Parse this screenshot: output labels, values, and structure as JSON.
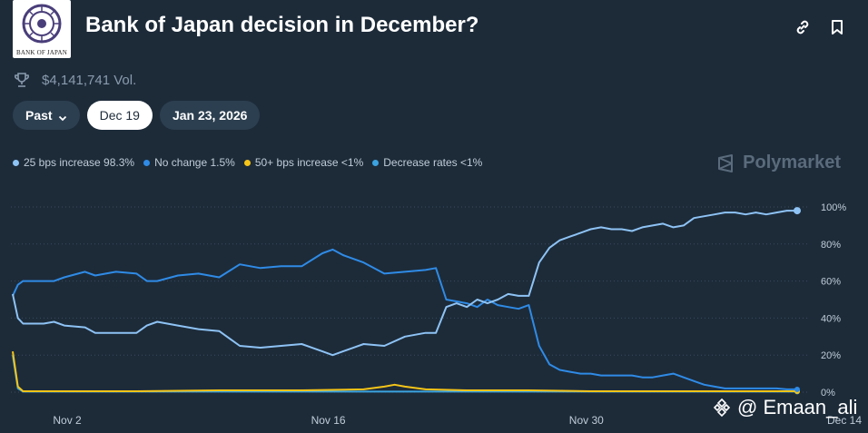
{
  "header": {
    "logo_text": "BANK OF JAPAN",
    "title": "Bank of Japan decision in December?",
    "icons": [
      "link-icon",
      "bookmark-icon"
    ]
  },
  "stats": {
    "volume": "$4,141,741 Vol.",
    "icon": "trophy-icon"
  },
  "controls": {
    "past_label": "Past",
    "date1": "Dec 19",
    "date2": "Jan 23, 2026"
  },
  "legend": [
    {
      "label": "25 bps increase 98.3%",
      "color": "#8ec3f5"
    },
    {
      "label": "No change 1.5%",
      "color": "#2f8be6"
    },
    {
      "label": "50+ bps increase <1%",
      "color": "#f5c518"
    },
    {
      "label": "Decrease rates <1%",
      "color": "#3ba3e0"
    }
  ],
  "brand": {
    "name": "Polymarket"
  },
  "watermark": {
    "text": "@ Emaan_ali"
  },
  "chart_data": {
    "type": "line",
    "x_ticks": [
      "Nov 2",
      "Nov 16",
      "Nov 30",
      "Dec 14"
    ],
    "y_ticks": [
      "0%",
      "20%",
      "40%",
      "60%",
      "80%",
      "100%"
    ],
    "ylim": [
      0,
      100
    ],
    "x_range_days": [
      0,
      47
    ],
    "grid": true,
    "series": [
      {
        "name": "25 bps increase",
        "color": "#8ec3f5",
        "points": [
          [
            0,
            53
          ],
          [
            0.5,
            40
          ],
          [
            1,
            37
          ],
          [
            3,
            37
          ],
          [
            4,
            38
          ],
          [
            5,
            36
          ],
          [
            7,
            35
          ],
          [
            8,
            32
          ],
          [
            10,
            32
          ],
          [
            12,
            32
          ],
          [
            13,
            36
          ],
          [
            14,
            38
          ],
          [
            16,
            36
          ],
          [
            18,
            34
          ],
          [
            20,
            33
          ],
          [
            22,
            25
          ],
          [
            24,
            24
          ],
          [
            26,
            25
          ],
          [
            28,
            26
          ],
          [
            30,
            22
          ],
          [
            31,
            20
          ],
          [
            32,
            22
          ],
          [
            34,
            26
          ],
          [
            36,
            25
          ],
          [
            38,
            30
          ],
          [
            40,
            32
          ],
          [
            41,
            32
          ],
          [
            42,
            46
          ],
          [
            43,
            48
          ],
          [
            44,
            46
          ],
          [
            45,
            50
          ],
          [
            46,
            48
          ],
          [
            47,
            50
          ],
          [
            48,
            53
          ],
          [
            49,
            52
          ],
          [
            50,
            52
          ],
          [
            51,
            70
          ],
          [
            52,
            78
          ],
          [
            53,
            82
          ],
          [
            54,
            84
          ],
          [
            55,
            86
          ],
          [
            56,
            88
          ],
          [
            57,
            89
          ],
          [
            58,
            88
          ],
          [
            59,
            88
          ],
          [
            60,
            87
          ],
          [
            61,
            89
          ],
          [
            62,
            90
          ],
          [
            63,
            91
          ],
          [
            64,
            89
          ],
          [
            65,
            90
          ],
          [
            66,
            94
          ],
          [
            67,
            95
          ],
          [
            68,
            96
          ],
          [
            69,
            97
          ],
          [
            70,
            97
          ],
          [
            71,
            96
          ],
          [
            72,
            97
          ],
          [
            73,
            96
          ],
          [
            74,
            97
          ],
          [
            75,
            98
          ],
          [
            76,
            98
          ]
        ]
      },
      {
        "name": "No change",
        "color": "#2f8be6",
        "points": [
          [
            0,
            52
          ],
          [
            0.5,
            58
          ],
          [
            1,
            60
          ],
          [
            3,
            60
          ],
          [
            4,
            60
          ],
          [
            5,
            62
          ],
          [
            7,
            65
          ],
          [
            8,
            63
          ],
          [
            10,
            65
          ],
          [
            12,
            64
          ],
          [
            13,
            60
          ],
          [
            14,
            60
          ],
          [
            16,
            63
          ],
          [
            18,
            64
          ],
          [
            20,
            62
          ],
          [
            22,
            69
          ],
          [
            24,
            67
          ],
          [
            26,
            68
          ],
          [
            28,
            68
          ],
          [
            30,
            75
          ],
          [
            31,
            77
          ],
          [
            32,
            74
          ],
          [
            34,
            70
          ],
          [
            36,
            64
          ],
          [
            38,
            65
          ],
          [
            40,
            66
          ],
          [
            41,
            67
          ],
          [
            42,
            50
          ],
          [
            43,
            49
          ],
          [
            44,
            48
          ],
          [
            45,
            46
          ],
          [
            46,
            50
          ],
          [
            47,
            47
          ],
          [
            48,
            46
          ],
          [
            49,
            45
          ],
          [
            50,
            47
          ],
          [
            51,
            25
          ],
          [
            52,
            15
          ],
          [
            53,
            12
          ],
          [
            54,
            11
          ],
          [
            55,
            10
          ],
          [
            56,
            10
          ],
          [
            57,
            9
          ],
          [
            58,
            9
          ],
          [
            59,
            9
          ],
          [
            60,
            9
          ],
          [
            61,
            8
          ],
          [
            62,
            8
          ],
          [
            63,
            9
          ],
          [
            64,
            10
          ],
          [
            65,
            8
          ],
          [
            66,
            6
          ],
          [
            67,
            4
          ],
          [
            68,
            3
          ],
          [
            69,
            2
          ],
          [
            70,
            2
          ],
          [
            71,
            2
          ],
          [
            72,
            2
          ],
          [
            73,
            2
          ],
          [
            74,
            2
          ],
          [
            75,
            1.5
          ],
          [
            76,
            1.5
          ]
        ]
      },
      {
        "name": "50+ bps increase",
        "color": "#f5c518",
        "points": [
          [
            0,
            22
          ],
          [
            0.5,
            3
          ],
          [
            1,
            0.5
          ],
          [
            6,
            0.5
          ],
          [
            12,
            0.5
          ],
          [
            20,
            1
          ],
          [
            28,
            1
          ],
          [
            34,
            1.5
          ],
          [
            36,
            3
          ],
          [
            37,
            4
          ],
          [
            38,
            3
          ],
          [
            40,
            1.5
          ],
          [
            44,
            1
          ],
          [
            50,
            1
          ],
          [
            56,
            0.5
          ],
          [
            62,
            0.5
          ],
          [
            68,
            0.5
          ],
          [
            76,
            0.5
          ]
        ]
      },
      {
        "name": "Decrease rates",
        "color": "#3ba3e0",
        "points": [
          [
            0,
            20
          ],
          [
            0.5,
            2
          ],
          [
            1,
            0.3
          ],
          [
            10,
            0.3
          ],
          [
            20,
            0.3
          ],
          [
            30,
            0.3
          ],
          [
            40,
            0.3
          ],
          [
            50,
            0.3
          ],
          [
            60,
            0.3
          ],
          [
            70,
            0.3
          ],
          [
            76,
            0.3
          ]
        ]
      }
    ]
  }
}
